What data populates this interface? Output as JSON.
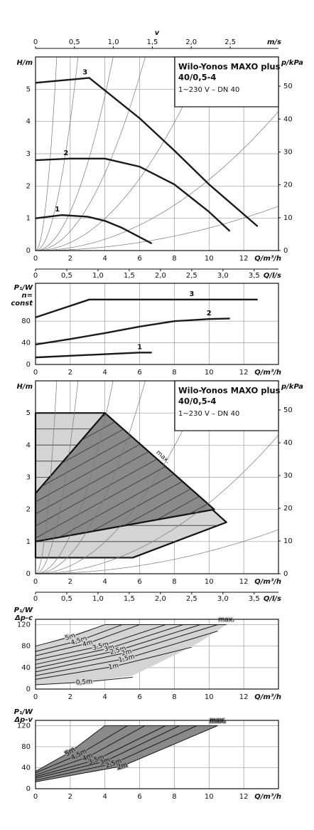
{
  "chart_data": [
    {
      "type": "line",
      "title": [
        "Wilo-Yonos MAXO plus",
        "40/0,5-4"
      ],
      "subtitle": "1~230 V – DN 40",
      "ylabel": [
        "H/m"
      ],
      "y2label": "p/kPa",
      "xlabel": "Q/m³/h",
      "x2title": "v",
      "x2label": "m/s",
      "xlim": [
        0,
        14
      ],
      "xticks": [
        0,
        2,
        4,
        6,
        8,
        10,
        12
      ],
      "ylim": [
        0,
        6
      ],
      "yticks": [
        0,
        1,
        2,
        3,
        4,
        5
      ],
      "y2lim": [
        0,
        58.9
      ],
      "y2ticks": [
        0,
        10,
        20,
        30,
        40,
        50
      ],
      "x2lim": [
        0,
        3.12
      ],
      "x2ticks": [
        0,
        {
          "value": 0.5,
          "label": "0,5"
        },
        {
          "value": 1,
          "label": "1,0"
        },
        {
          "value": 1.5,
          "label": "1,5"
        },
        {
          "value": 2,
          "label": "2,0"
        },
        {
          "value": 2.5,
          "label": "2,5"
        }
      ],
      "grid": true,
      "series": [
        {
          "name": "3",
          "color": "#1a1a1a",
          "x": [
            0,
            3.1,
            6,
            8,
            10,
            12.8
          ],
          "values": [
            5.2,
            5.35,
            4.1,
            3.1,
            2.05,
            0.75
          ]
        },
        {
          "name": "2",
          "color": "#1a1a1a",
          "x": [
            0,
            2,
            4,
            6,
            8,
            10,
            11.2
          ],
          "values": [
            2.8,
            2.85,
            2.85,
            2.6,
            2.05,
            1.2,
            0.6
          ]
        },
        {
          "name": "1",
          "color": "#1a1a1a",
          "x": [
            0,
            1.5,
            3,
            4,
            5,
            6.7
          ],
          "values": [
            1.0,
            1.1,
            1.05,
            0.92,
            0.7,
            0.22
          ]
        }
      ]
    },
    {
      "type": "line",
      "ylabel": [
        "P₁/W",
        "n=",
        "const"
      ],
      "xlabel": "Q/m³/h",
      "x2label": "Q/l/s",
      "xlim": [
        0,
        14
      ],
      "xticks": [
        0,
        2,
        4,
        6,
        8,
        10,
        12
      ],
      "ylim": [
        0,
        150
      ],
      "yticks": [
        0,
        40,
        80
      ],
      "x2lim": [
        0,
        3.889
      ],
      "x2ticks": [
        0,
        {
          "value": 0.5,
          "label": "0,5"
        },
        {
          "value": 1,
          "label": "1,0"
        },
        {
          "value": 1.5,
          "label": "1,5"
        },
        {
          "value": 2,
          "label": "2,0"
        },
        {
          "value": 2.5,
          "label": "2,5"
        },
        {
          "value": 3,
          "label": "3,0"
        },
        {
          "value": 3.5,
          "label": "3,5"
        }
      ],
      "grid": true,
      "series": [
        {
          "name": "3",
          "color": "#1a1a1a",
          "x": [
            0,
            1.5,
            3.1,
            6,
            9,
            12.8
          ],
          "values": [
            87,
            103,
            120,
            120,
            120,
            120
          ]
        },
        {
          "name": "2",
          "color": "#1a1a1a",
          "x": [
            0,
            2,
            4,
            6,
            8,
            10,
            11.2
          ],
          "values": [
            37,
            47,
            58,
            70,
            80,
            84,
            85
          ]
        },
        {
          "name": "1",
          "color": "#1a1a1a",
          "x": [
            0,
            2,
            4,
            6,
            6.7
          ],
          "values": [
            13,
            16,
            19,
            22,
            22
          ]
        }
      ]
    },
    {
      "type": "area",
      "title": [
        "Wilo-Yonos MAXO plus",
        "40/0,5-4"
      ],
      "subtitle": "1~230 V – DN 40",
      "ylabel": [
        "H/m"
      ],
      "y2label": "p/kPa",
      "xlabel": "Q/m³/h",
      "x2label": "Q/l/s",
      "annotation": "max.",
      "xlim": [
        0,
        14
      ],
      "xticks": [
        0,
        2,
        4,
        6,
        8,
        10,
        12
      ],
      "ylim": [
        0,
        6
      ],
      "yticks": [
        0,
        1,
        2,
        3,
        4,
        5
      ],
      "y2lim": [
        0,
        58.9
      ],
      "y2ticks": [
        0,
        10,
        20,
        30,
        40,
        50
      ],
      "x2lim": [
        0,
        3.889
      ],
      "x2ticks": [
        0,
        {
          "value": 0.5,
          "label": "0,5"
        },
        {
          "value": 1,
          "label": "1,0"
        },
        {
          "value": 1.5,
          "label": "1,5"
        },
        {
          "value": 2,
          "label": "2,0"
        },
        {
          "value": 2.5,
          "label": "2,5"
        },
        {
          "value": 3,
          "label": "3,0"
        },
        {
          "value": 3.5,
          "label": "3,5"
        }
      ],
      "grid": true,
      "regions": [
        {
          "color": "#d4d4d4",
          "x": [
            0,
            4,
            11,
            5.6,
            0
          ],
          "values": [
            5,
            5,
            1.6,
            0.5,
            0.5
          ]
        },
        {
          "color": "#8a8a8a",
          "x": [
            0,
            4,
            10.3,
            0
          ],
          "values": [
            2.5,
            5,
            2,
            1
          ]
        }
      ]
    },
    {
      "type": "line",
      "ylabel": [
        "P₁/W",
        "Δp-c"
      ],
      "xlabel": "Q/m³/h",
      "xlim": [
        0,
        14
      ],
      "xticks": [
        0,
        2,
        4,
        6,
        8,
        10,
        12
      ],
      "ylim": [
        0,
        130
      ],
      "yticks": [
        0,
        40,
        80,
        120
      ],
      "grid": true,
      "regions": [
        {
          "color": "#d4d4d4",
          "x": [
            0,
            4,
            11,
            9.5,
            7.5,
            5.6,
            2.8,
            0
          ],
          "values": [
            80,
            120,
            120,
            88,
            55,
            25,
            13,
            8
          ]
        }
      ],
      "series": [
        {
          "name": "5m",
          "color": "#1a1a1a",
          "x": [
            0,
            2,
            4
          ],
          "values": [
            80,
            97,
            120
          ]
        },
        {
          "name": "4,5m",
          "color": "#1a1a1a",
          "x": [
            0,
            2.5,
            5
          ],
          "values": [
            70,
            90,
            120
          ]
        },
        {
          "name": "4m",
          "color": "#1a1a1a",
          "x": [
            0,
            3,
            6
          ],
          "values": [
            62,
            85,
            120
          ]
        },
        {
          "name": "3,5m",
          "color": "#1a1a1a",
          "x": [
            0,
            3.75,
            7.5
          ],
          "values": [
            54,
            80,
            120
          ]
        },
        {
          "name": "3m",
          "color": "#1a1a1a",
          "x": [
            0,
            4.25,
            8.5
          ],
          "values": [
            46,
            76,
            120
          ]
        },
        {
          "name": "2,5m",
          "color": "#1a1a1a",
          "x": [
            0,
            4.75,
            9.5
          ],
          "values": [
            39,
            72,
            120
          ]
        },
        {
          "name": "2m",
          "color": "#1a1a1a",
          "x": [
            0,
            5.25,
            10.5
          ],
          "values": [
            32,
            68,
            120
          ]
        },
        {
          "name": "1,5m",
          "color": "#1a1a1a",
          "x": [
            0,
            5.25,
            10.5
          ],
          "values": [
            25,
            57,
            108
          ]
        },
        {
          "name": "1m",
          "color": "#1a1a1a",
          "x": [
            0,
            4.5,
            9
          ],
          "values": [
            18,
            42,
            78
          ]
        },
        {
          "name": "0,5m",
          "color": "#1a1a1a",
          "x": [
            0,
            2.8,
            5.6
          ],
          "values": [
            8,
            13,
            22
          ]
        },
        {
          "name": "max.",
          "color": "#1a1a1a",
          "x": [
            4,
            11
          ],
          "values": [
            120,
            120
          ]
        }
      ]
    },
    {
      "type": "line",
      "ylabel": [
        "P₁/W",
        "Δp-v"
      ],
      "xlabel": "Q/m³/h",
      "xlim": [
        0,
        14
      ],
      "xticks": [
        0,
        2,
        4,
        6,
        8,
        10,
        12
      ],
      "ylim": [
        0,
        130
      ],
      "yticks": [
        0,
        40,
        80,
        120
      ],
      "grid": true,
      "regions": [
        {
          "color": "#8a8a8a",
          "x": [
            0,
            2,
            4,
            10.5,
            5,
            0
          ],
          "values": [
            33,
            70,
            120,
            120,
            43,
            13
          ]
        }
      ],
      "series": [
        {
          "name": "5m",
          "color": "#1a1a1a",
          "x": [
            0,
            2,
            4
          ],
          "values": [
            33,
            70,
            120
          ]
        },
        {
          "name": "4,5m",
          "color": "#1a1a1a",
          "x": [
            0,
            2.5,
            5.3
          ],
          "values": [
            30,
            65,
            120
          ]
        },
        {
          "name": "4m",
          "color": "#1a1a1a",
          "x": [
            0,
            3,
            6.3
          ],
          "values": [
            26,
            60,
            120
          ]
        },
        {
          "name": "3,5m",
          "color": "#1a1a1a",
          "x": [
            0,
            3.5,
            7.5
          ],
          "values": [
            23,
            55,
            120
          ]
        },
        {
          "name": "3m",
          "color": "#1a1a1a",
          "x": [
            0,
            4,
            8.3
          ],
          "values": [
            20,
            52,
            120
          ]
        },
        {
          "name": "2,5m",
          "color": "#1a1a1a",
          "x": [
            0,
            4.5,
            9.3
          ],
          "values": [
            16,
            48,
            120
          ]
        },
        {
          "name": "2m",
          "color": "#1a1a1a",
          "x": [
            0,
            5,
            10.5
          ],
          "values": [
            13,
            43,
            120
          ]
        },
        {
          "name": "max.",
          "color": "#1a1a1a",
          "x": [
            4,
            10.5
          ],
          "values": [
            120,
            120
          ]
        }
      ]
    }
  ]
}
